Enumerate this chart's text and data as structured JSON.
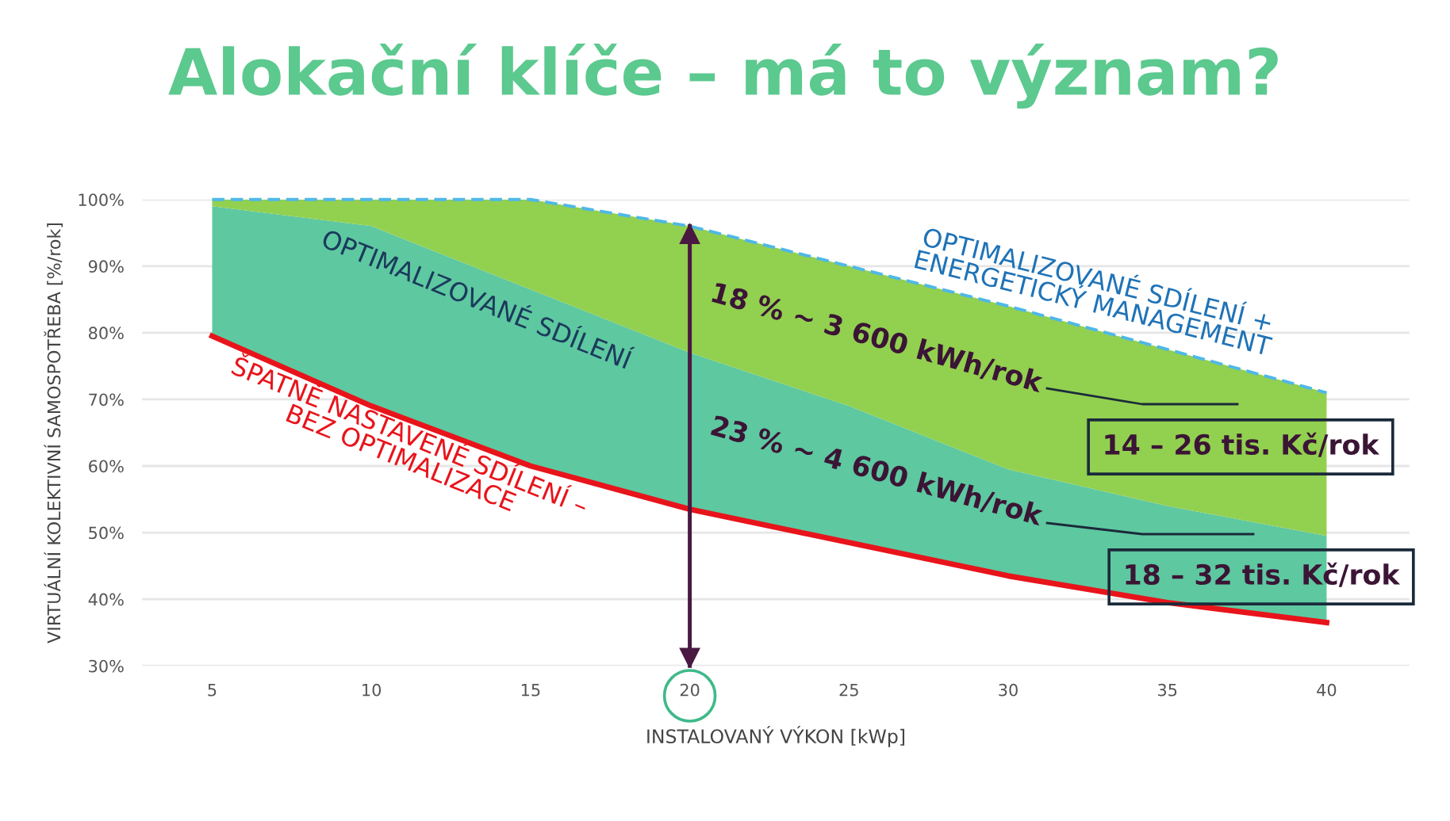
{
  "chart_data": {
    "type": "area",
    "title": "Alokační klíče – má to význam?",
    "xlabel": "INSTALOVANÝ VÝKON [kWp]",
    "ylabel": "VIRTUÁLNÍ KOLEKTIVNÍ SAMOSPOTŘEBA [%/rok]",
    "x": [
      5,
      10,
      15,
      20,
      25,
      30,
      35,
      40
    ],
    "series": [
      {
        "name": "ŠPATNĚ NASTAVENÉ SDÍLENÍ –\nBEZ OPTIMALIZACE",
        "type": "line",
        "color": "#e8141b",
        "values": [
          79.5,
          69,
          60,
          53.5,
          48.5,
          43.5,
          39.5,
          36.5
        ]
      },
      {
        "name": "OPTIMALIZOVANÉ SDÍLENÍ",
        "color": "#5ec8a0",
        "values": [
          99,
          96,
          86.5,
          77,
          69,
          59.5,
          54,
          49.5
        ]
      },
      {
        "color": "#92d050",
        "values": [
          100,
          100,
          100,
          96,
          90,
          84,
          77.5,
          71
        ]
      },
      {
        "name": "OPTIMALIZOVANÉ SDÍLENÍ +\nENERGETICKÝ MANAGEMENT",
        "type": "line",
        "color": "#4fb8e6",
        "line_style": "dashed",
        "values": [
          100,
          100,
          100,
          96,
          90,
          84,
          77.5,
          71
        ]
      }
    ],
    "xlim": [
      2.8,
      42.6
    ],
    "ylim": [
      30,
      100
    ],
    "xticks": [
      5,
      10,
      15,
      20,
      25,
      30,
      35,
      40
    ],
    "yticks": [
      {
        "value": 30,
        "label": "30%"
      },
      {
        "value": 40,
        "label": "40%"
      },
      {
        "value": 50,
        "label": "50%"
      },
      {
        "value": 60,
        "label": "60%"
      },
      {
        "value": 70,
        "label": "70%"
      },
      {
        "value": 80,
        "label": "80%"
      },
      {
        "value": 90,
        "label": "90%"
      },
      {
        "value": 100,
        "label": "100%"
      }
    ],
    "grid": "y",
    "ref_lines": [
      {
        "axis": "x",
        "value": 20,
        "color": "#4a1942"
      }
    ],
    "annotations": [
      "18 % ~ 3 600 kWh/rok",
      "23 % ~ 4 600 kWh/rok",
      "14 – 26 tis. Kč/rok",
      "18 – 32 tis. Kč/rok"
    ]
  }
}
